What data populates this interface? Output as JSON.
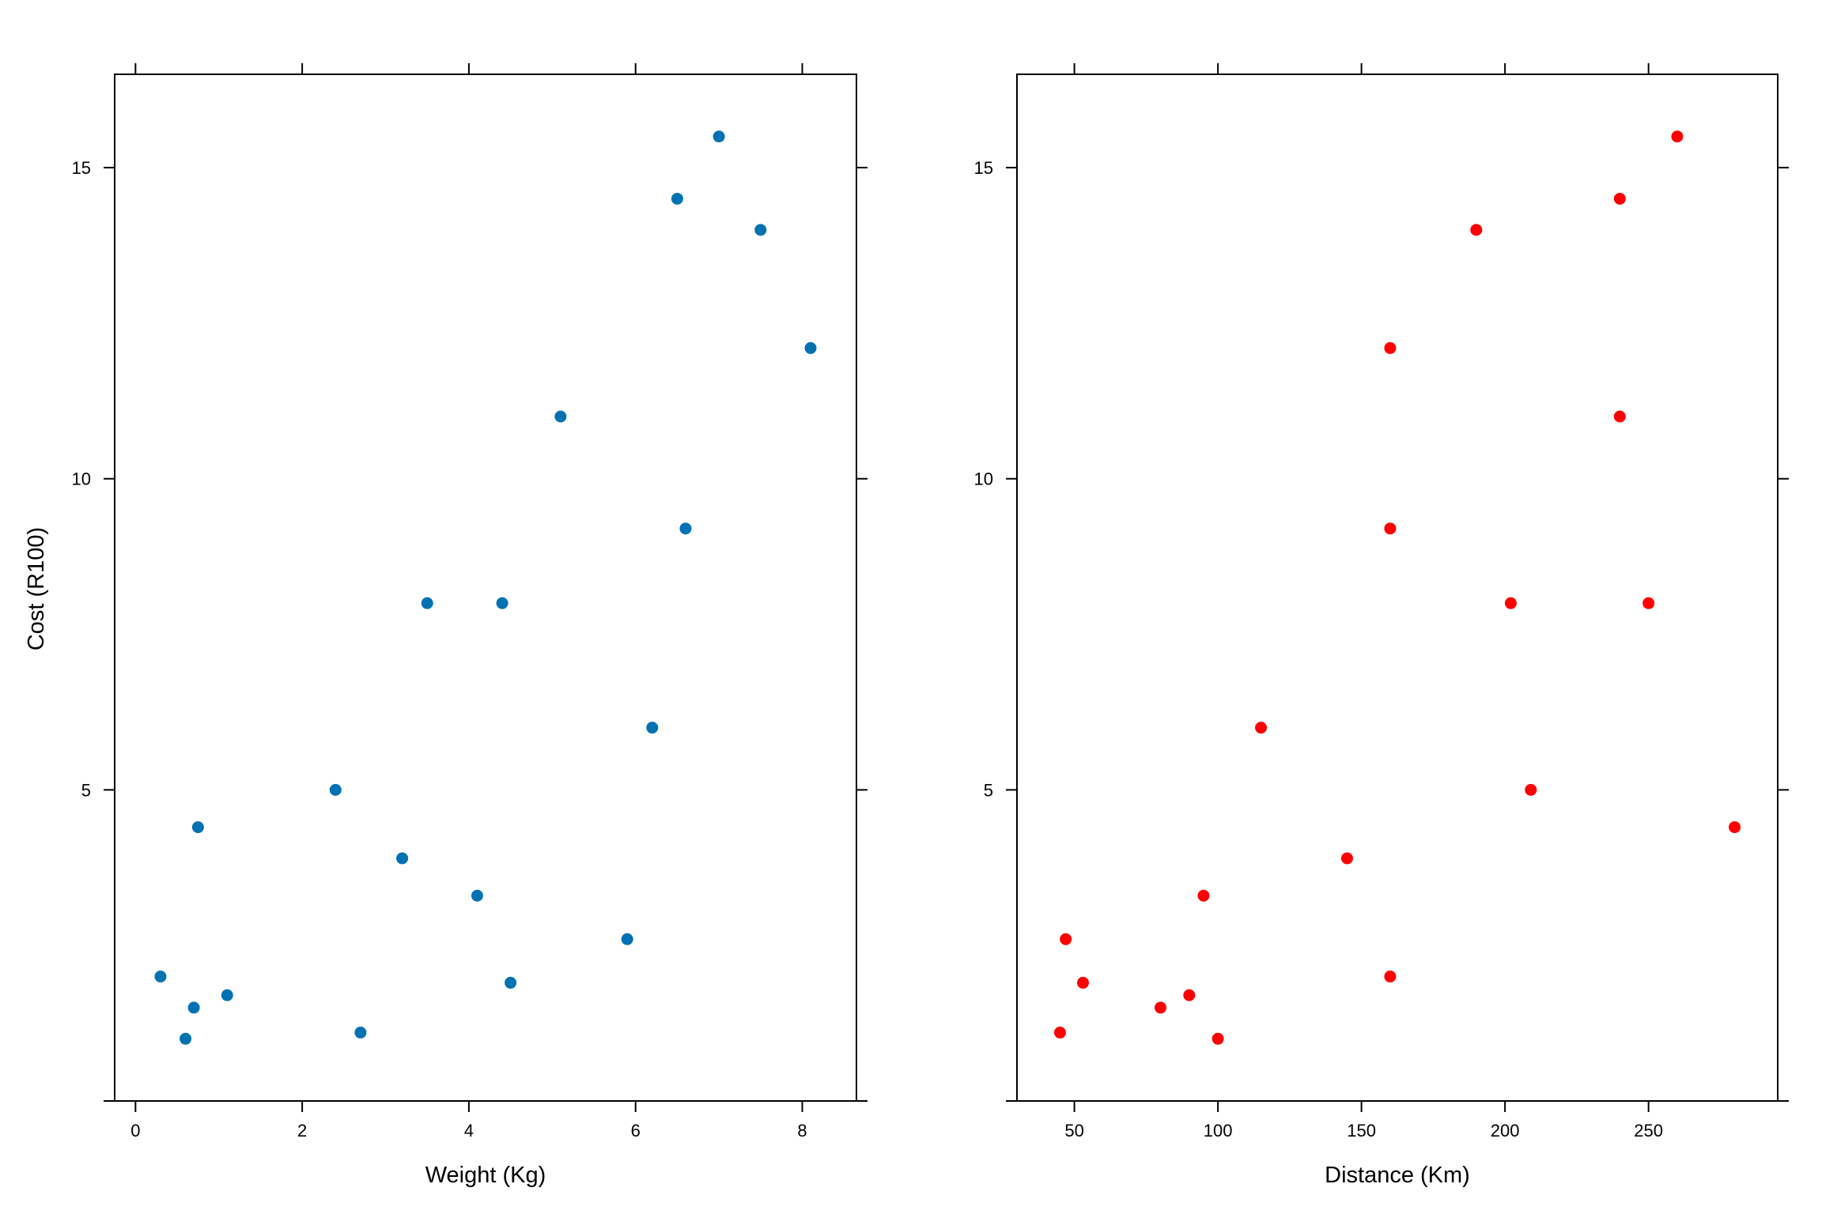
{
  "chart_data": {
    "type": "scatter",
    "ylabel": "Cost (R100)",
    "ylim": [
      0,
      16.5
    ],
    "yticks": [
      5,
      10,
      15
    ],
    "grid": false,
    "legend": "none",
    "panels": [
      {
        "xlabel": "Weight (Kg)",
        "xlim": [
          -0.25,
          8.65
        ],
        "xticks": [
          0,
          2,
          4,
          6,
          8
        ],
        "color": "#0072B2",
        "points": [
          {
            "x": 0.3,
            "y": 2.0
          },
          {
            "x": 0.6,
            "y": 1.0
          },
          {
            "x": 0.7,
            "y": 1.5
          },
          {
            "x": 0.75,
            "y": 4.4
          },
          {
            "x": 1.1,
            "y": 1.7
          },
          {
            "x": 2.4,
            "y": 5.0
          },
          {
            "x": 2.7,
            "y": 1.1
          },
          {
            "x": 3.2,
            "y": 3.9
          },
          {
            "x": 3.5,
            "y": 8.0
          },
          {
            "x": 4.1,
            "y": 3.3
          },
          {
            "x": 4.4,
            "y": 8.0
          },
          {
            "x": 4.5,
            "y": 1.9
          },
          {
            "x": 5.1,
            "y": 11.0
          },
          {
            "x": 5.9,
            "y": 2.6
          },
          {
            "x": 6.2,
            "y": 6.0
          },
          {
            "x": 6.5,
            "y": 14.5
          },
          {
            "x": 6.6,
            "y": 9.2
          },
          {
            "x": 7.0,
            "y": 15.5
          },
          {
            "x": 7.5,
            "y": 14.0
          },
          {
            "x": 8.1,
            "y": 12.1
          }
        ]
      },
      {
        "xlabel": "Distance (Km)",
        "xlim": [
          30,
          295
        ],
        "xticks": [
          50,
          100,
          150,
          200,
          250
        ],
        "color": "#FF0000",
        "points": [
          {
            "x": 45,
            "y": 1.1
          },
          {
            "x": 47,
            "y": 2.6
          },
          {
            "x": 53,
            "y": 1.9
          },
          {
            "x": 80,
            "y": 1.5
          },
          {
            "x": 90,
            "y": 1.7
          },
          {
            "x": 95,
            "y": 3.3
          },
          {
            "x": 100,
            "y": 1.0
          },
          {
            "x": 115,
            "y": 6.0
          },
          {
            "x": 145,
            "y": 3.9
          },
          {
            "x": 160,
            "y": 2.0
          },
          {
            "x": 160,
            "y": 9.2
          },
          {
            "x": 160,
            "y": 12.1
          },
          {
            "x": 190,
            "y": 14.0
          },
          {
            "x": 202,
            "y": 8.0
          },
          {
            "x": 209,
            "y": 5.0
          },
          {
            "x": 240,
            "y": 11.0
          },
          {
            "x": 240,
            "y": 14.5
          },
          {
            "x": 250,
            "y": 8.0
          },
          {
            "x": 260,
            "y": 15.5
          },
          {
            "x": 280,
            "y": 4.4
          }
        ]
      }
    ]
  }
}
